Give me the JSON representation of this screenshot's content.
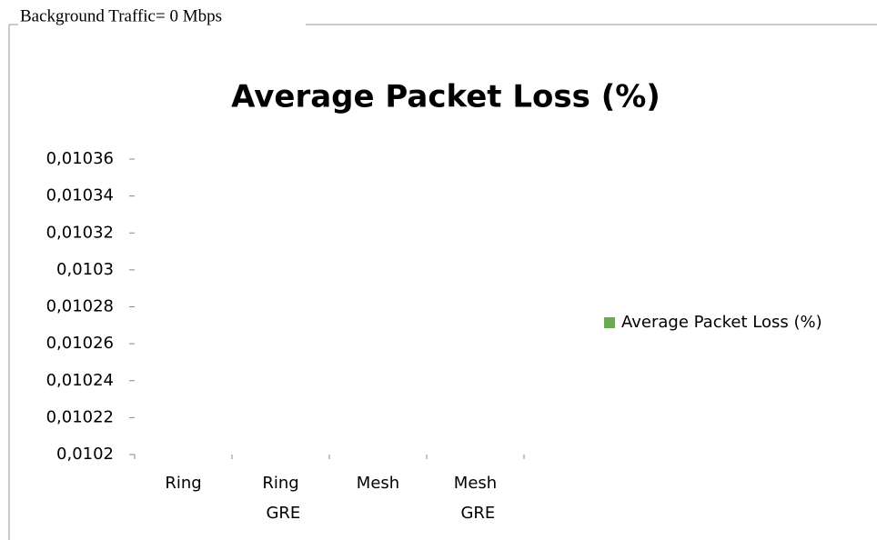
{
  "header": {
    "title": "Background Traffic= 0 Mbps"
  },
  "chart_data": {
    "type": "bar",
    "title": "Average Packet Loss (%)",
    "categories": [
      "Ring",
      "Ring GRE",
      "Mesh",
      "Mesh GRE"
    ],
    "series": [
      {
        "name": "Average Packet Loss (%)",
        "color": "#6aaa50",
        "values": [
          null,
          null,
          null,
          null
        ]
      }
    ],
    "ylim": [
      0.0102,
      0.01036
    ],
    "yticks": [
      {
        "value": 0.0102,
        "label": "0,0102"
      },
      {
        "value": 0.01022,
        "label": "0,01022"
      },
      {
        "value": 0.01024,
        "label": "0,01024"
      },
      {
        "value": 0.01026,
        "label": "0,01026"
      },
      {
        "value": 0.01028,
        "label": "0,01028"
      },
      {
        "value": 0.0103,
        "label": "0,0103"
      },
      {
        "value": 0.01032,
        "label": "0,01032"
      },
      {
        "value": 0.01034,
        "label": "0,01034"
      },
      {
        "value": 0.01036,
        "label": "0,01036"
      }
    ],
    "legend": "right"
  }
}
